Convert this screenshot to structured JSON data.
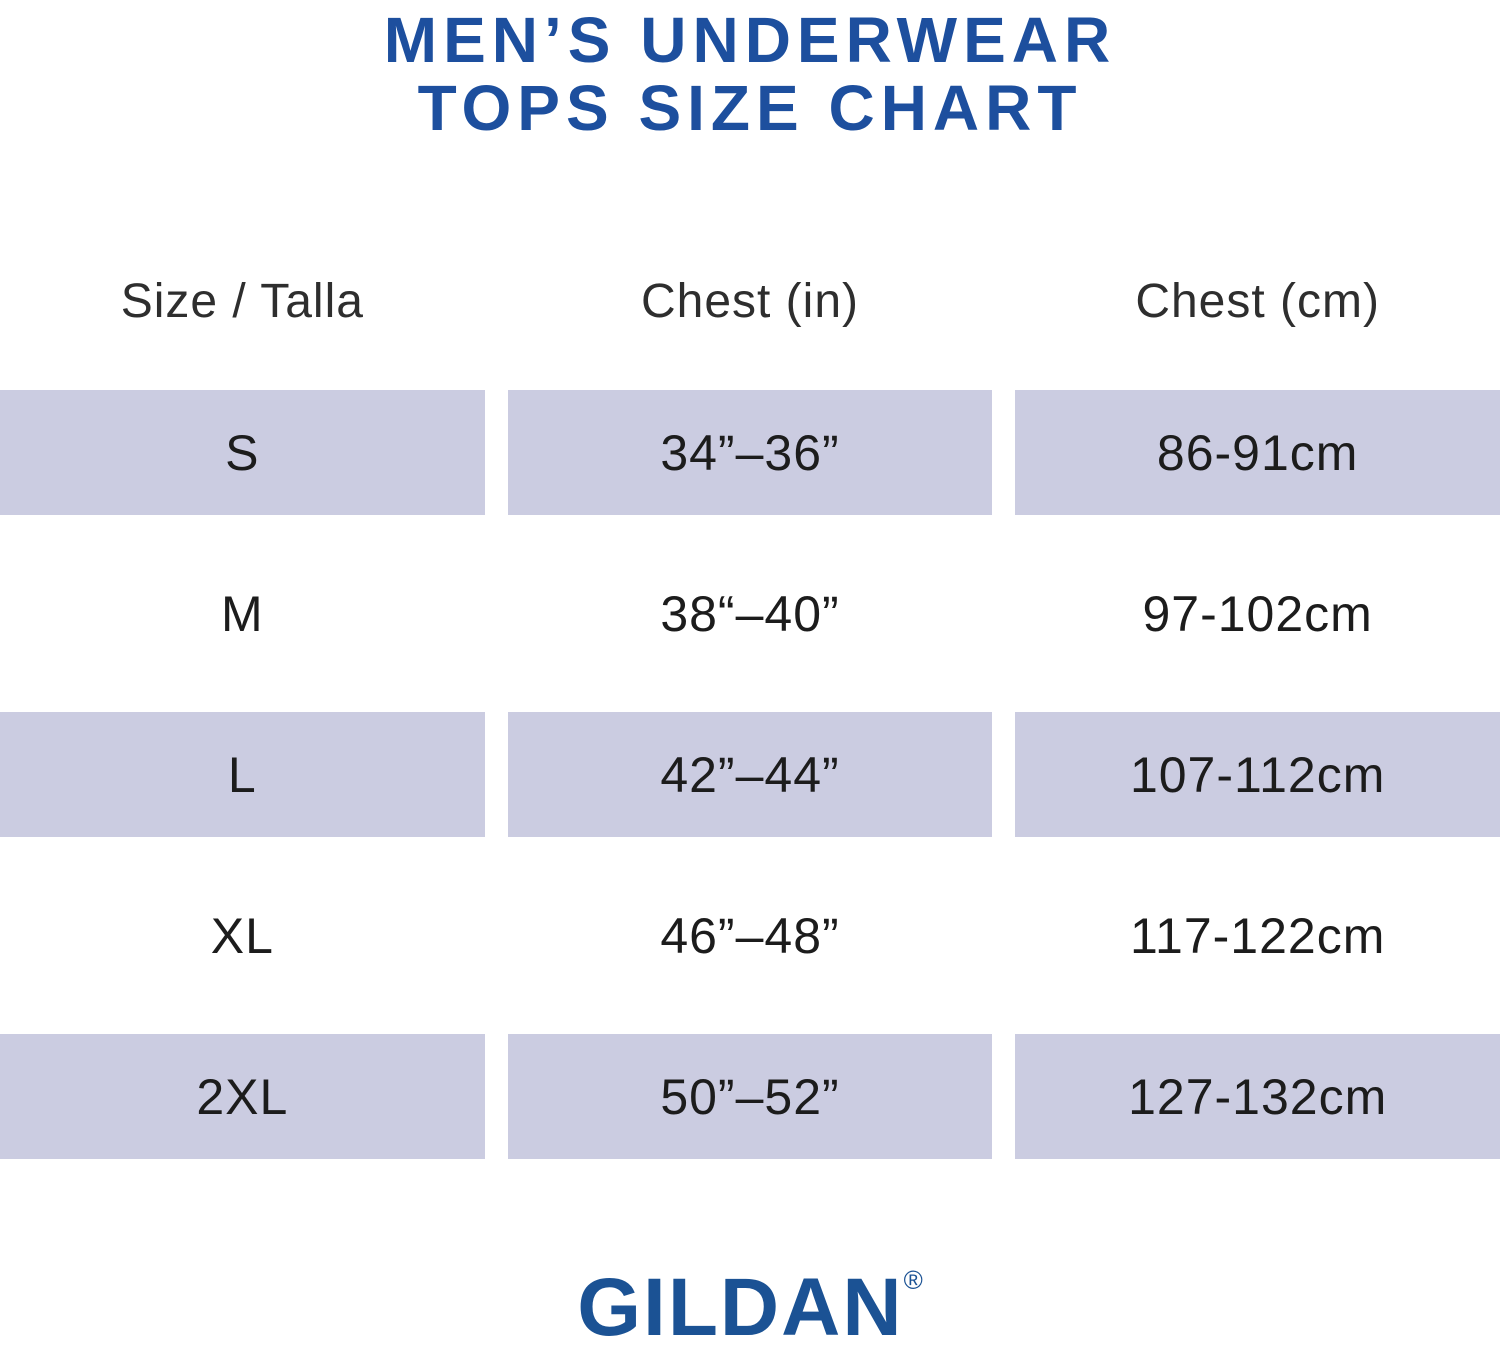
{
  "title": {
    "line1": "MEN’S UNDERWEAR",
    "line2": "TOPS SIZE CHART"
  },
  "chart_data": {
    "type": "table",
    "title": "MEN’S UNDERWEAR TOPS SIZE CHART",
    "columns": [
      "Size / Talla",
      "Chest (in)",
      "Chest (cm)"
    ],
    "rows": [
      {
        "size": "S",
        "chest_in": "34”–36”",
        "chest_cm": "86-91cm"
      },
      {
        "size": "M",
        "chest_in": "38“–40”",
        "chest_cm": "97-102cm"
      },
      {
        "size": "L",
        "chest_in": "42”–44”",
        "chest_cm": "107-112cm"
      },
      {
        "size": "XL",
        "chest_in": "46”–48”",
        "chest_cm": "117-122cm"
      },
      {
        "size": "2XL",
        "chest_in": "50”–52”",
        "chest_cm": "127-132cm"
      }
    ],
    "shaded_row_indices": [
      0,
      2,
      4
    ],
    "legend": "none",
    "grid": "off"
  },
  "footer": {
    "brand": "GILDAN",
    "registered_mark": "®"
  },
  "colors": {
    "title_blue": "#1d4f9e",
    "logo_blue": "#1b5294",
    "row_shade": "#cbcce1",
    "header_text": "#2e2e2e",
    "cell_text": "#1c1c1c"
  }
}
